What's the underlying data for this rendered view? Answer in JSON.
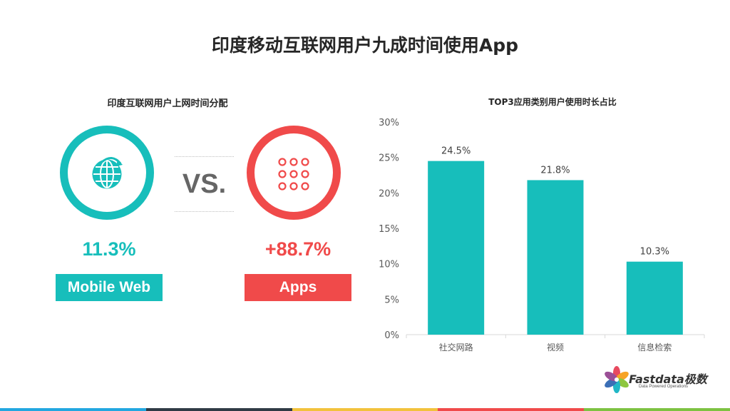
{
  "page": {
    "title": "印度移动互联网用户九成时间使用App"
  },
  "comparison": {
    "title": "印度互联网用户上网时间分配",
    "vs_label": "VS.",
    "web": {
      "percent": "11.3%",
      "label": "Mobile Web",
      "icon": "globe-icon",
      "color": "#17BEBB"
    },
    "app": {
      "percent": "+88.7%",
      "label": "Apps",
      "icon": "app-grid-icon",
      "color": "#F04A4A"
    }
  },
  "chart_data": {
    "type": "bar",
    "title": "TOP3应用类别用户使用时长占比",
    "categories": [
      "社交网路",
      "视频",
      "信息检索"
    ],
    "values": [
      24.5,
      21.8,
      10.3
    ],
    "data_labels": [
      "24.5%",
      "21.8%",
      "10.3%"
    ],
    "y_ticks": [
      "0%",
      "5%",
      "10%",
      "15%",
      "20%",
      "25%",
      "30%"
    ],
    "ylim": [
      0,
      30
    ],
    "unit": "%",
    "bar_color": "#17BEBB",
    "grid": false
  },
  "logo": {
    "text": "Fastdata极数",
    "tagline": "Data Powered Operations"
  },
  "bottom_bar_colors": [
    "#22A7E0",
    "#2F3A45",
    "#F2C23B",
    "#F04A4A",
    "#7DC242"
  ]
}
